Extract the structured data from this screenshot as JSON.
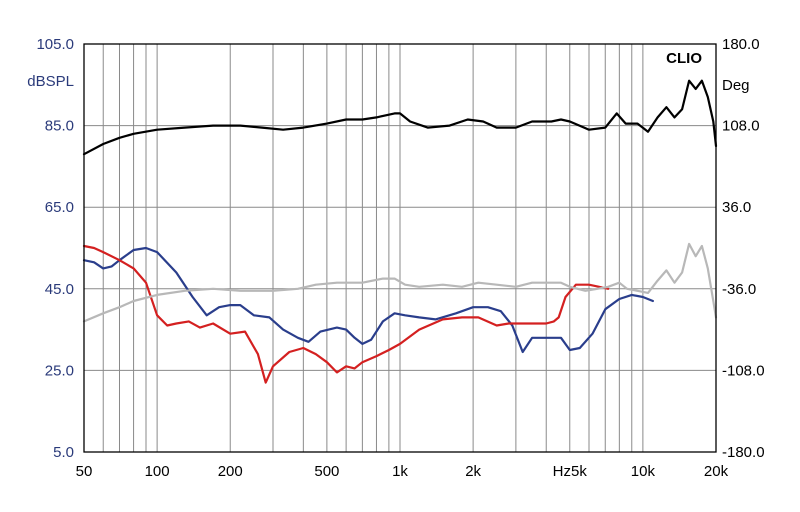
{
  "chart_data": {
    "type": "line",
    "brand": "CLIO",
    "x_axis": {
      "scale": "log",
      "range": [
        50,
        20000
      ],
      "tick_labels": [
        {
          "value": 50,
          "label": "50"
        },
        {
          "value": 100,
          "label": "100"
        },
        {
          "value": 200,
          "label": "200"
        },
        {
          "value": 500,
          "label": "500"
        },
        {
          "value": 1000,
          "label": "1k"
        },
        {
          "value": 2000,
          "label": "2k"
        },
        {
          "value": 5000,
          "label": "Hz5k"
        },
        {
          "value": 10000,
          "label": "10k"
        },
        {
          "value": 20000,
          "label": "20k"
        }
      ],
      "grid": true
    },
    "y_left": {
      "label": "dBSPL",
      "range": [
        5,
        105
      ],
      "tick_labels": [
        "105.0",
        "85.0",
        "65.0",
        "45.0",
        "25.0",
        "5.0"
      ],
      "tick_values": [
        105,
        85,
        65,
        45,
        25,
        5
      ]
    },
    "y_right": {
      "label": "Deg",
      "range": [
        -180,
        180
      ],
      "tick_labels": [
        "180.0",
        "108.0",
        "36.0",
        "-36.0",
        "-108.0",
        "-180.0"
      ],
      "tick_values": [
        180,
        108,
        36,
        -36,
        -108,
        -180
      ]
    },
    "series": [
      {
        "color": "#000000",
        "axis": "left",
        "points": [
          [
            50,
            78
          ],
          [
            60,
            80.5
          ],
          [
            70,
            82
          ],
          [
            80,
            83
          ],
          [
            100,
            84
          ],
          [
            130,
            84.5
          ],
          [
            170,
            85
          ],
          [
            220,
            85
          ],
          [
            270,
            84.5
          ],
          [
            330,
            84
          ],
          [
            400,
            84.5
          ],
          [
            500,
            85.5
          ],
          [
            600,
            86.5
          ],
          [
            700,
            86.5
          ],
          [
            800,
            87
          ],
          [
            950,
            88
          ],
          [
            1000,
            88
          ],
          [
            1100,
            86
          ],
          [
            1300,
            84.5
          ],
          [
            1600,
            85
          ],
          [
            1900,
            86.5
          ],
          [
            2200,
            86
          ],
          [
            2500,
            84.5
          ],
          [
            3000,
            84.5
          ],
          [
            3500,
            86
          ],
          [
            4200,
            86
          ],
          [
            4600,
            86.5
          ],
          [
            5000,
            86
          ],
          [
            6000,
            84
          ],
          [
            7000,
            84.5
          ],
          [
            7800,
            88
          ],
          [
            8500,
            85.5
          ],
          [
            9500,
            85.5
          ],
          [
            10500,
            83.5
          ],
          [
            11500,
            87
          ],
          [
            12500,
            89.5
          ],
          [
            13500,
            87
          ],
          [
            14500,
            89
          ],
          [
            15500,
            96
          ],
          [
            16500,
            94
          ],
          [
            17500,
            96
          ],
          [
            18500,
            92
          ],
          [
            19500,
            86
          ],
          [
            20000,
            80
          ]
        ]
      },
      {
        "color": "#2a3e8c",
        "axis": "left",
        "points": [
          [
            50,
            52
          ],
          [
            55,
            51.5
          ],
          [
            60,
            50
          ],
          [
            65,
            50.5
          ],
          [
            70,
            52
          ],
          [
            80,
            54.5
          ],
          [
            90,
            55
          ],
          [
            100,
            54
          ],
          [
            120,
            49
          ],
          [
            140,
            43
          ],
          [
            160,
            38.5
          ],
          [
            180,
            40.5
          ],
          [
            200,
            41
          ],
          [
            220,
            41
          ],
          [
            250,
            38.5
          ],
          [
            290,
            38
          ],
          [
            330,
            35
          ],
          [
            380,
            33
          ],
          [
            420,
            32
          ],
          [
            470,
            34.5
          ],
          [
            550,
            35.5
          ],
          [
            600,
            35
          ],
          [
            650,
            33
          ],
          [
            700,
            31.5
          ],
          [
            760,
            32.5
          ],
          [
            850,
            37
          ],
          [
            950,
            39
          ],
          [
            1050,
            38.5
          ],
          [
            1200,
            38
          ],
          [
            1400,
            37.5
          ],
          [
            1700,
            39
          ],
          [
            2000,
            40.5
          ],
          [
            2300,
            40.5
          ],
          [
            2600,
            39.5
          ],
          [
            2900,
            36
          ],
          [
            3200,
            29.5
          ],
          [
            3500,
            33
          ],
          [
            4000,
            33
          ],
          [
            4600,
            33
          ],
          [
            5000,
            30
          ],
          [
            5500,
            30.5
          ],
          [
            6200,
            34
          ],
          [
            7000,
            40
          ],
          [
            8000,
            42.5
          ],
          [
            9000,
            43.5
          ],
          [
            10000,
            43
          ],
          [
            11000,
            42
          ]
        ]
      },
      {
        "color": "#d42020",
        "axis": "left",
        "points": [
          [
            50,
            55.5
          ],
          [
            55,
            55
          ],
          [
            60,
            54
          ],
          [
            70,
            52
          ],
          [
            80,
            50
          ],
          [
            90,
            46.5
          ],
          [
            100,
            38.5
          ],
          [
            110,
            36
          ],
          [
            120,
            36.5
          ],
          [
            135,
            37
          ],
          [
            150,
            35.5
          ],
          [
            170,
            36.5
          ],
          [
            200,
            34
          ],
          [
            230,
            34.5
          ],
          [
            260,
            29
          ],
          [
            280,
            22
          ],
          [
            300,
            26
          ],
          [
            350,
            29.5
          ],
          [
            400,
            30.5
          ],
          [
            450,
            29
          ],
          [
            500,
            27
          ],
          [
            550,
            24.5
          ],
          [
            600,
            26
          ],
          [
            650,
            25.5
          ],
          [
            700,
            27
          ],
          [
            800,
            28.5
          ],
          [
            900,
            30
          ],
          [
            1000,
            31.5
          ],
          [
            1200,
            35
          ],
          [
            1500,
            37.5
          ],
          [
            1800,
            38
          ],
          [
            2100,
            38
          ],
          [
            2500,
            36
          ],
          [
            2800,
            36.5
          ],
          [
            3200,
            36.5
          ],
          [
            3600,
            36.5
          ],
          [
            4000,
            36.5
          ],
          [
            4300,
            37
          ],
          [
            4500,
            38
          ],
          [
            4800,
            43
          ],
          [
            5300,
            46
          ],
          [
            6000,
            46
          ],
          [
            6600,
            45.5
          ],
          [
            7200,
            45
          ]
        ]
      },
      {
        "color": "#b8b8b8",
        "axis": "left",
        "points": [
          [
            50,
            37
          ],
          [
            60,
            39
          ],
          [
            70,
            40.5
          ],
          [
            80,
            42
          ],
          [
            100,
            43.5
          ],
          [
            130,
            44.5
          ],
          [
            170,
            45
          ],
          [
            220,
            44.5
          ],
          [
            300,
            44.5
          ],
          [
            380,
            45
          ],
          [
            450,
            46
          ],
          [
            550,
            46.5
          ],
          [
            700,
            46.5
          ],
          [
            850,
            47.5
          ],
          [
            950,
            47.5
          ],
          [
            1050,
            46
          ],
          [
            1200,
            45.5
          ],
          [
            1500,
            46
          ],
          [
            1800,
            45.5
          ],
          [
            2100,
            46.5
          ],
          [
            2500,
            46
          ],
          [
            3000,
            45.5
          ],
          [
            3500,
            46.5
          ],
          [
            4000,
            46.5
          ],
          [
            4600,
            46.5
          ],
          [
            5000,
            45.5
          ],
          [
            5800,
            44.5
          ],
          [
            6500,
            45
          ],
          [
            7200,
            45.5
          ],
          [
            8000,
            46.5
          ],
          [
            8600,
            45
          ],
          [
            9500,
            44.5
          ],
          [
            10500,
            44
          ],
          [
            11500,
            47
          ],
          [
            12500,
            49.5
          ],
          [
            13500,
            46.5
          ],
          [
            14500,
            49
          ],
          [
            15500,
            56
          ],
          [
            16500,
            53
          ],
          [
            17500,
            55.5
          ],
          [
            18500,
            50
          ],
          [
            19500,
            42
          ],
          [
            20000,
            38
          ]
        ]
      }
    ]
  }
}
